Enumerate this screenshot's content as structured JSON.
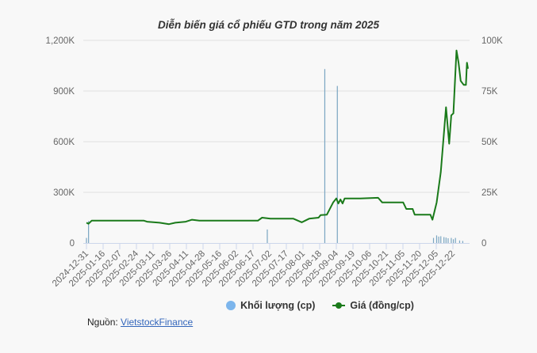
{
  "chart_data": {
    "type": "line",
    "title": "Diễn biến giá cổ phiếu GTD trong năm 2025",
    "xlabel": "",
    "ylabel_left": "Khối lượng (cp)",
    "ylabel_right": "Giá (đồng/cp)",
    "y_left_ticks": [
      "0",
      "300K",
      "600K",
      "900K",
      "1,200K"
    ],
    "y_right_ticks": [
      "0",
      "25K",
      "50K",
      "75K",
      "100K"
    ],
    "ylim_left": [
      0,
      1200000
    ],
    "ylim_right": [
      0,
      100000
    ],
    "grid": true,
    "legend_position": "bottom",
    "x_ticks": [
      "2024-12-31",
      "2025-01-16",
      "2025-02-07",
      "2025-02-24",
      "2025-03-11",
      "2025-03-26",
      "2025-04-11",
      "2025-04-28",
      "2025-05-16",
      "2025-06-02",
      "2025-06-17",
      "2025-07-02",
      "2025-07-17",
      "2025-08-01",
      "2025-08-18",
      "2025-09-04",
      "2025-09-19",
      "2025-10-06",
      "2025-10-21",
      "2025-11-05",
      "2025-11-20",
      "2025-12-05",
      "2025-12-22"
    ],
    "series": [
      {
        "name": "Khối lượng (cp)",
        "type": "column",
        "axis": "left",
        "color": "#7cb5ec",
        "points": [
          {
            "x": "2024-12-31",
            "y": 30000
          },
          {
            "x": "2025-01-02",
            "y": 130000
          },
          {
            "x": "2025-06-22",
            "y": 80000
          },
          {
            "x": "2025-08-16",
            "y": 1030000
          },
          {
            "x": "2025-08-28",
            "y": 930000
          },
          {
            "x": "2025-11-28",
            "y": 30000
          },
          {
            "x": "2025-12-01",
            "y": 45000
          },
          {
            "x": "2025-12-03",
            "y": 38000
          },
          {
            "x": "2025-12-05",
            "y": 40000
          },
          {
            "x": "2025-12-08",
            "y": 35000
          },
          {
            "x": "2025-12-10",
            "y": 32000
          },
          {
            "x": "2025-12-12",
            "y": 28000
          },
          {
            "x": "2025-12-15",
            "y": 30000
          },
          {
            "x": "2025-12-17",
            "y": 22000
          },
          {
            "x": "2025-12-19",
            "y": 30000
          },
          {
            "x": "2025-12-23",
            "y": 15000
          },
          {
            "x": "2025-12-26",
            "y": 12000
          }
        ]
      },
      {
        "name": "Giá (đồng/cp)",
        "type": "line",
        "axis": "right",
        "color": "#1a7a1a",
        "points": [
          {
            "x": "2024-12-31",
            "y": 10000
          },
          {
            "x": "2025-01-02",
            "y": 9500
          },
          {
            "x": "2025-01-05",
            "y": 11000
          },
          {
            "x": "2025-01-16",
            "y": 11000
          },
          {
            "x": "2025-02-24",
            "y": 11000
          },
          {
            "x": "2025-02-27",
            "y": 10500
          },
          {
            "x": "2025-03-11",
            "y": 10000
          },
          {
            "x": "2025-03-20",
            "y": 9300
          },
          {
            "x": "2025-03-26",
            "y": 10000
          },
          {
            "x": "2025-04-05",
            "y": 10500
          },
          {
            "x": "2025-04-11",
            "y": 11500
          },
          {
            "x": "2025-04-18",
            "y": 11000
          },
          {
            "x": "2025-05-16",
            "y": 11000
          },
          {
            "x": "2025-06-02",
            "y": 11000
          },
          {
            "x": "2025-06-13",
            "y": 11000
          },
          {
            "x": "2025-06-17",
            "y": 12500
          },
          {
            "x": "2025-06-25",
            "y": 12000
          },
          {
            "x": "2025-07-17",
            "y": 12000
          },
          {
            "x": "2025-07-25",
            "y": 10200
          },
          {
            "x": "2025-08-01",
            "y": 12000
          },
          {
            "x": "2025-08-10",
            "y": 12500
          },
          {
            "x": "2025-08-12",
            "y": 13800
          },
          {
            "x": "2025-08-18",
            "y": 14000
          },
          {
            "x": "2025-08-24",
            "y": 20000
          },
          {
            "x": "2025-08-27",
            "y": 22000
          },
          {
            "x": "2025-08-29",
            "y": 19500
          },
          {
            "x": "2025-08-31",
            "y": 21500
          },
          {
            "x": "2025-09-02",
            "y": 19500
          },
          {
            "x": "2025-09-04",
            "y": 22000
          },
          {
            "x": "2025-09-19",
            "y": 22000
          },
          {
            "x": "2025-10-06",
            "y": 22300
          },
          {
            "x": "2025-10-10",
            "y": 20000
          },
          {
            "x": "2025-10-21",
            "y": 20000
          },
          {
            "x": "2025-10-30",
            "y": 20000
          },
          {
            "x": "2025-11-02",
            "y": 16800
          },
          {
            "x": "2025-11-08",
            "y": 16800
          },
          {
            "x": "2025-11-10",
            "y": 14000
          },
          {
            "x": "2025-11-25",
            "y": 14000
          },
          {
            "x": "2025-11-27",
            "y": 11500
          },
          {
            "x": "2025-12-01",
            "y": 20000
          },
          {
            "x": "2025-12-05",
            "y": 35000
          },
          {
            "x": "2025-12-10",
            "y": 67000
          },
          {
            "x": "2025-12-13",
            "y": 49000
          },
          {
            "x": "2025-12-15",
            "y": 63000
          },
          {
            "x": "2025-12-17",
            "y": 64000
          },
          {
            "x": "2025-12-20",
            "y": 95000
          },
          {
            "x": "2025-12-22",
            "y": 89000
          },
          {
            "x": "2025-12-24",
            "y": 80000
          },
          {
            "x": "2025-12-27",
            "y": 78000
          },
          {
            "x": "2025-12-29",
            "y": 78000
          },
          {
            "x": "2025-12-30",
            "y": 89000
          },
          {
            "x": "2025-12-31",
            "y": 86000
          }
        ]
      }
    ]
  },
  "legend": {
    "volume_label": "Khối lượng (cp)",
    "price_label": "Giá (đồng/cp)"
  },
  "source": {
    "prefix": "Nguồn: ",
    "link_text": "VietstockFinance"
  }
}
